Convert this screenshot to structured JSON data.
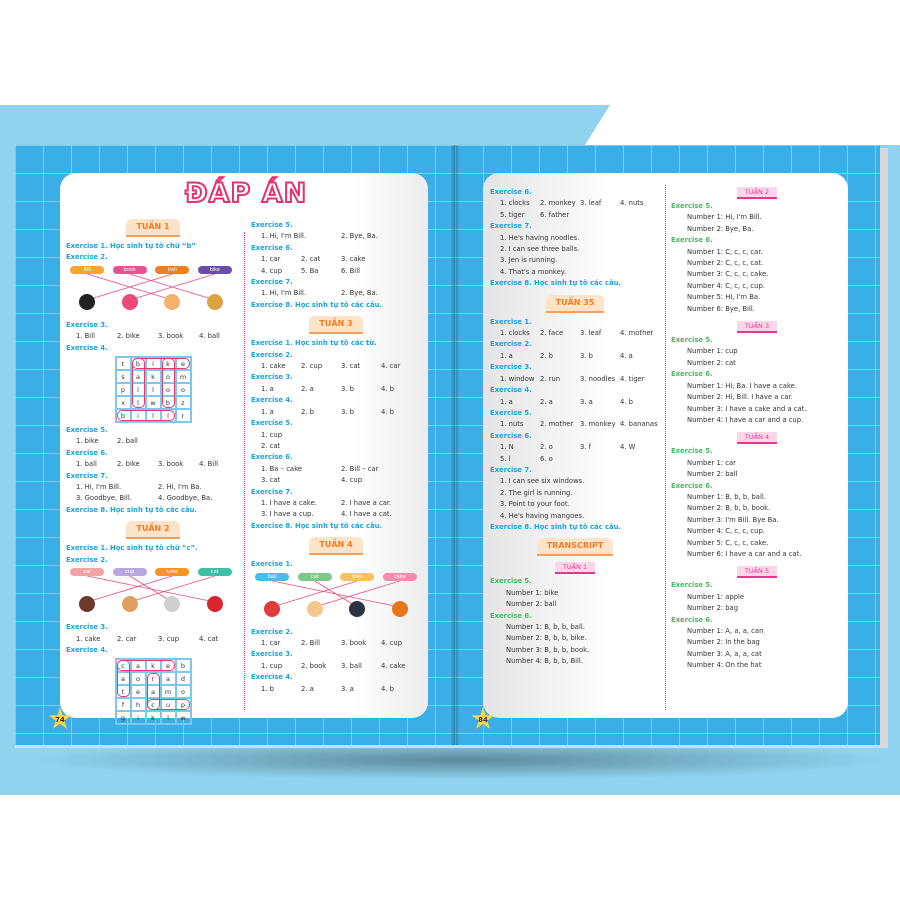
{
  "title": "ĐÁP ÁN",
  "page_numbers": {
    "left": "74",
    "right": "84"
  },
  "left_col1": [
    {
      "type": "week",
      "text": "TUẦN 1"
    },
    {
      "type": "ex",
      "text": "Exercise 1. Học sinh tự tô chữ “b”"
    },
    {
      "type": "ex",
      "text": "Exercise 2."
    },
    {
      "type": "match",
      "labels": [
        {
          "text": "Bill",
          "color": "#f7a531"
        },
        {
          "text": "book",
          "color": "#ee4f8f"
        },
        {
          "text": "ball",
          "color": "#f07f1c"
        },
        {
          "text": "bike",
          "color": "#6a4fa8"
        }
      ],
      "pictures": [
        {
          "icon": "ball-icon",
          "color": "#222"
        },
        {
          "icon": "bike-icon",
          "color": "#e84a7a"
        },
        {
          "icon": "boy-icon",
          "color": "#f5b26b"
        },
        {
          "icon": "book-icon",
          "color": "#d9a441"
        }
      ],
      "links": [
        2,
        3,
        0,
        1
      ]
    },
    {
      "type": "ex",
      "text": "Exercise 3."
    },
    {
      "type": "row",
      "items": [
        "1. Bill",
        "2. bike",
        "3. book",
        "4. ball"
      ]
    },
    {
      "type": "ex",
      "text": "Exercise 4."
    },
    {
      "type": "grid",
      "letters": [
        [
          "t",
          "b",
          "i",
          "k",
          "e"
        ],
        [
          "s",
          "a",
          "k",
          "o",
          "m"
        ],
        [
          "p",
          "l",
          "l",
          "o",
          "o"
        ],
        [
          "x",
          "l",
          "w",
          "b",
          "z"
        ],
        [
          "b",
          "i",
          "l",
          "l",
          "r"
        ]
      ],
      "circled": [
        [
          0,
          1,
          3,
          1
        ],
        [
          0,
          3,
          3,
          3
        ],
        [
          0,
          1,
          0,
          4
        ],
        [
          4,
          0,
          4,
          3
        ]
      ]
    },
    {
      "type": "ex",
      "text": "Exercise 5."
    },
    {
      "type": "row",
      "items": [
        "1. bike",
        "2. ball"
      ]
    },
    {
      "type": "ex",
      "text": "Exercise 6."
    },
    {
      "type": "row",
      "items": [
        "1. ball",
        "2. bike",
        "3. book",
        "4. Bill"
      ]
    },
    {
      "type": "ex",
      "text": "Exercise 7."
    },
    {
      "type": "row2",
      "items": [
        "1. Hi, I'm Bill.",
        "2. Hi, I'm Ba.",
        "3. Goodbye, Bill.",
        "4. Goodbye, Ba."
      ]
    },
    {
      "type": "ex",
      "text": "Exercise 8. Học sinh tự tô các câu."
    },
    {
      "type": "week",
      "text": "TUẦN 2"
    },
    {
      "type": "ex",
      "text": "Exercise 1. Học sinh tự tô chữ “c”."
    },
    {
      "type": "ex",
      "text": "Exercise 2."
    },
    {
      "type": "match",
      "labels": [
        {
          "text": "car",
          "color": "#f2a3a3"
        },
        {
          "text": "cup",
          "color": "#b9a6e0"
        },
        {
          "text": "cake",
          "color": "#f7931e"
        },
        {
          "text": "cat",
          "color": "#3fbfa5"
        }
      ],
      "pictures": [
        {
          "icon": "cake-icon",
          "color": "#6b3a2a"
        },
        {
          "icon": "cat-icon",
          "color": "#e0a060"
        },
        {
          "icon": "cup-icon",
          "color": "#cfcfcf"
        },
        {
          "icon": "car-icon",
          "color": "#d7262e"
        }
      ],
      "links": [
        3,
        2,
        0,
        1
      ]
    },
    {
      "type": "ex",
      "text": "Exercise 3."
    },
    {
      "type": "row",
      "items": [
        "1. cake",
        "2. car",
        "3. cup",
        "4. cat"
      ]
    },
    {
      "type": "ex",
      "text": "Exercise 4."
    },
    {
      "type": "grid",
      "letters": [
        [
          "c",
          "a",
          "k",
          "e",
          "b"
        ],
        [
          "a",
          "o",
          "r",
          "a",
          "d"
        ],
        [
          "t",
          "e",
          "a",
          "m",
          "o"
        ],
        [
          "f",
          "h",
          "c",
          "u",
          "p"
        ],
        [
          "g",
          "i",
          "k",
          "l",
          "w"
        ]
      ],
      "circled": [
        [
          0,
          0,
          0,
          3
        ],
        [
          0,
          0,
          2,
          0
        ],
        [
          1,
          2,
          3,
          2
        ],
        [
          3,
          2,
          3,
          4
        ]
      ]
    }
  ],
  "left_col2": [
    {
      "type": "ex",
      "text": "Exercise 5."
    },
    {
      "type": "row2",
      "items": [
        "1. Hi, I'm Bill.",
        "2. Bye, Ba."
      ]
    },
    {
      "type": "ex",
      "text": "Exercise 6."
    },
    {
      "type": "row",
      "items": [
        "1. car",
        "2. cat",
        "3. cake",
        ""
      ]
    },
    {
      "type": "row",
      "items": [
        "4. cup",
        "5. Ba",
        "6. Bill",
        ""
      ]
    },
    {
      "type": "ex",
      "text": "Exercise 7."
    },
    {
      "type": "row2",
      "items": [
        "1. Hi, I'm Bill.",
        "2. Bye, Ba."
      ]
    },
    {
      "type": "ex",
      "text": "Exercise 8. Học sinh tự tô các câu."
    },
    {
      "type": "week",
      "text": "TUẦN 3"
    },
    {
      "type": "ex",
      "text": "Exercise 1. Học sinh tự tô các từ."
    },
    {
      "type": "ex",
      "text": "Exercise 2."
    },
    {
      "type": "row",
      "items": [
        "1. cake",
        "2. cup",
        "3. cat",
        "4. car"
      ]
    },
    {
      "type": "ex",
      "text": "Exercise 3."
    },
    {
      "type": "row",
      "items": [
        "1. a",
        "2. a",
        "3. b",
        "4. b"
      ]
    },
    {
      "type": "ex",
      "text": "Exercise 4."
    },
    {
      "type": "row",
      "items": [
        "1. a",
        "2. b",
        "3. b",
        "4. b"
      ]
    },
    {
      "type": "ex",
      "text": "Exercise 5."
    },
    {
      "type": "line",
      "text": "1. cup"
    },
    {
      "type": "line",
      "text": "2. cat"
    },
    {
      "type": "ex",
      "text": "Exercise 6."
    },
    {
      "type": "row2",
      "items": [
        "1. Ba – cake",
        "2. Bill – car",
        "3. cat",
        "4. cup"
      ]
    },
    {
      "type": "ex",
      "text": "Exercise 7."
    },
    {
      "type": "row2",
      "items": [
        "1. I have a cake.",
        "2. I have a car.",
        "3. I have a cup.",
        "4. I have a cat."
      ]
    },
    {
      "type": "ex",
      "text": "Exercise 8. Học sinh tự tô các câu."
    },
    {
      "type": "week",
      "text": "TUẦN 4"
    },
    {
      "type": "ex",
      "text": "Exercise 1."
    },
    {
      "type": "match",
      "labels": [
        {
          "text": "ball",
          "color": "#4fb9ea"
        },
        {
          "text": "cat",
          "color": "#7cc98a"
        },
        {
          "text": "bike",
          "color": "#fbc15e"
        },
        {
          "text": "cake",
          "color": "#ef8fb0"
        }
      ],
      "pictures": [
        {
          "icon": "bike-icon",
          "color": "#e03a3a"
        },
        {
          "icon": "cake-icon",
          "color": "#f3c88a"
        },
        {
          "icon": "cat-icon",
          "color": "#2e3440"
        },
        {
          "icon": "ball-icon",
          "color": "#e8751a"
        }
      ],
      "links": [
        3,
        2,
        0,
        1
      ]
    },
    {
      "type": "ex",
      "text": "Exercise 2."
    },
    {
      "type": "row",
      "items": [
        "1. car",
        "2. Bill",
        "3. book",
        "4. cup"
      ]
    },
    {
      "type": "ex",
      "text": "Exercise 3."
    },
    {
      "type": "row",
      "items": [
        "1. cup",
        "2. book",
        "3. ball",
        "4. cake"
      ]
    },
    {
      "type": "ex",
      "text": "Exercise 4."
    },
    {
      "type": "row",
      "items": [
        "1. b",
        "2. a",
        "3. a",
        "4. b"
      ]
    }
  ],
  "right_col1": [
    {
      "type": "ex",
      "text": "Exercise 6."
    },
    {
      "type": "row",
      "items": [
        "1. clocks",
        "2. monkey",
        "3. leaf",
        "4. nuts"
      ]
    },
    {
      "type": "row",
      "items": [
        "5. tiger",
        "6. father",
        "",
        ""
      ]
    },
    {
      "type": "ex",
      "text": "Exercise 7."
    },
    {
      "type": "line",
      "text": "1. He's having noodles."
    },
    {
      "type": "line",
      "text": "2. I can see three balls."
    },
    {
      "type": "line",
      "text": "3. Jen is running."
    },
    {
      "type": "line",
      "text": "4. That's a monkey."
    },
    {
      "type": "ex",
      "text": "Exercise 8. Học sinh tự tô các câu."
    },
    {
      "type": "week",
      "text": "TUẦN 35"
    },
    {
      "type": "ex",
      "text": "Exercise 1."
    },
    {
      "type": "row",
      "items": [
        "1. clocks",
        "2. face",
        "3. leaf",
        "4. mother"
      ]
    },
    {
      "type": "ex",
      "text": "Exercise 2."
    },
    {
      "type": "row",
      "items": [
        "1. a",
        "2. b",
        "3. b",
        "4. a"
      ]
    },
    {
      "type": "ex",
      "text": "Exercise 3."
    },
    {
      "type": "row",
      "items": [
        "1. window",
        "2. run",
        "3. noodles",
        "4. tiger"
      ]
    },
    {
      "type": "ex",
      "text": "Exercise 4."
    },
    {
      "type": "row",
      "items": [
        "1. a",
        "2. a",
        "3. a",
        "4. b"
      ]
    },
    {
      "type": "ex",
      "text": "Exercise 5."
    },
    {
      "type": "row",
      "items": [
        "1. nuts",
        "2. mother",
        "3. monkey",
        "4. bananas"
      ]
    },
    {
      "type": "ex",
      "text": "Exercise 6."
    },
    {
      "type": "row",
      "items": [
        "1. N",
        "2. o",
        "3. f",
        "4. W"
      ]
    },
    {
      "type": "row",
      "items": [
        "5. l",
        "6. o",
        "",
        ""
      ]
    },
    {
      "type": "ex",
      "text": "Exercise 7."
    },
    {
      "type": "line",
      "text": "1. I can see six windows."
    },
    {
      "type": "line",
      "text": "2. The girl is running."
    },
    {
      "type": "line",
      "text": "3. Point to your foot."
    },
    {
      "type": "line",
      "text": "4. He's having mangoes."
    },
    {
      "type": "ex",
      "text": "Exercise 8. Học sinh tự tô các câu."
    },
    {
      "type": "week",
      "text": "TRANSCRIPT"
    },
    {
      "type": "tweek",
      "text": "TUẦN 1"
    },
    {
      "type": "gex",
      "text": "Exercise 5."
    },
    {
      "type": "tline",
      "text": "Number 1: bike"
    },
    {
      "type": "tline",
      "text": "Number 2: ball"
    },
    {
      "type": "gex",
      "text": "Exercise 6."
    },
    {
      "type": "tline",
      "text": "Number 1: B, b, b, ball."
    },
    {
      "type": "tline",
      "text": "Number 2: B, b, b, bike."
    },
    {
      "type": "tline",
      "text": "Number 3: B, b, b, book."
    },
    {
      "type": "tline",
      "text": "Number 4: B, b, b, Bill."
    }
  ],
  "right_col2": [
    {
      "type": "tweek",
      "text": "TUẦN 2"
    },
    {
      "type": "gex",
      "text": "Exercise 5."
    },
    {
      "type": "tline",
      "text": "Number 1: Hi, I'm Bill."
    },
    {
      "type": "tline",
      "text": "Number 2: Bye, Ba."
    },
    {
      "type": "gex",
      "text": "Exercise 6."
    },
    {
      "type": "tline",
      "text": "Number 1: C, c, c, car."
    },
    {
      "type": "tline",
      "text": "Number 2: C, c, c, cat."
    },
    {
      "type": "tline",
      "text": "Number 3: C, c, c, cake."
    },
    {
      "type": "tline",
      "text": "Number 4: C, c, c, cup."
    },
    {
      "type": "tline",
      "text": "Number 5: Hi, I'm Ba."
    },
    {
      "type": "tline",
      "text": "Number 6: Bye, Bill."
    },
    {
      "type": "tweek",
      "text": "TUẦN 3"
    },
    {
      "type": "gex",
      "text": "Exercise 5."
    },
    {
      "type": "tline",
      "text": "Number 1: cup"
    },
    {
      "type": "tline",
      "text": "Number 2: cat"
    },
    {
      "type": "gex",
      "text": "Exercise 6."
    },
    {
      "type": "tline",
      "text": "Number 1: Hi, Ba. I have a cake."
    },
    {
      "type": "tline",
      "text": "Number 2: Hi, Bill. I have a car."
    },
    {
      "type": "tline",
      "text": "Number 3: I have a cake and a cat."
    },
    {
      "type": "tline",
      "text": "Number 4: I have a car and a cup."
    },
    {
      "type": "tweek",
      "text": "TUẦN 4"
    },
    {
      "type": "gex",
      "text": "Exercise 5."
    },
    {
      "type": "tline",
      "text": "Number 1: car"
    },
    {
      "type": "tline",
      "text": "Number 2: ball"
    },
    {
      "type": "gex",
      "text": "Exercise 6."
    },
    {
      "type": "tline",
      "text": "Number 1: B, b, b, ball."
    },
    {
      "type": "tline",
      "text": "Number 2: B, b, b, book."
    },
    {
      "type": "tline",
      "text": "Number 3: I'm Bill. Bye Ba."
    },
    {
      "type": "tline",
      "text": "Number 4: C, c, c, cup."
    },
    {
      "type": "tline",
      "text": "Number 5: C, c, c, cake."
    },
    {
      "type": "tline",
      "text": "Number 6: I have a car and a cat."
    },
    {
      "type": "tweek",
      "text": "TUẦN 5"
    },
    {
      "type": "gex",
      "text": "Exercise 5."
    },
    {
      "type": "tline",
      "text": "Number 1: apple"
    },
    {
      "type": "tline",
      "text": "Number 2: bag"
    },
    {
      "type": "gex",
      "text": "Exercise 6."
    },
    {
      "type": "tline",
      "text": "Number 1: A, a, a, can"
    },
    {
      "type": "tline",
      "text": "Number 2: In the bag"
    },
    {
      "type": "tline",
      "text": "Number 3: A, a, a, cat"
    },
    {
      "type": "tline",
      "text": "Number 4: On the hat"
    }
  ]
}
